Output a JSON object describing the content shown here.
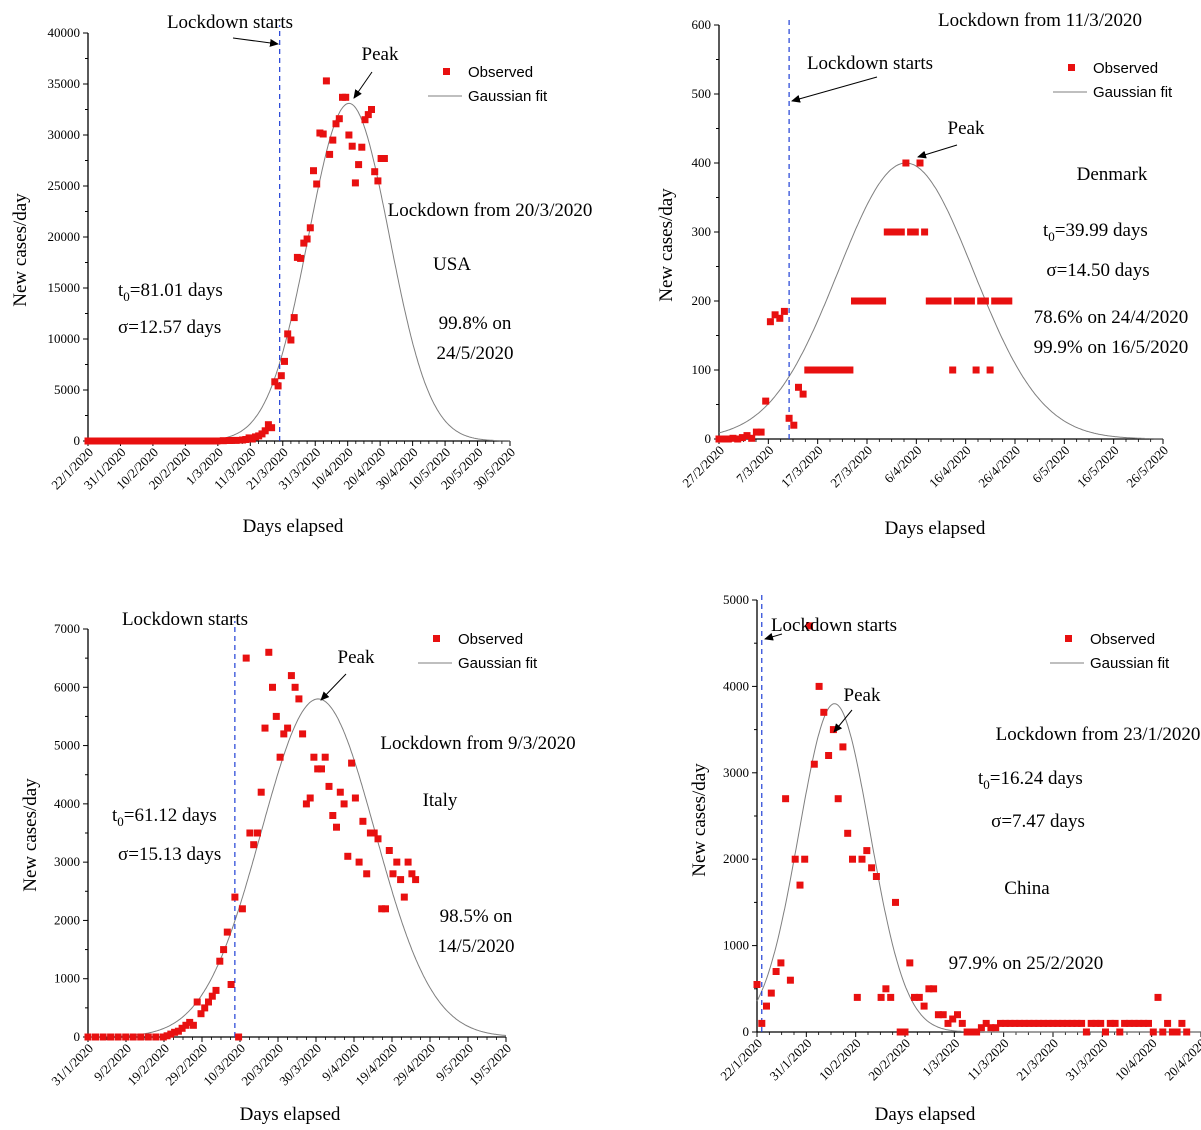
{
  "chart_data": [
    {
      "type": "scatter",
      "country": "USA",
      "xlabel": "Days elapsed",
      "ylabel": "New cases/day",
      "ylim": [
        0,
        40000
      ],
      "yticks": [
        "0",
        "5000",
        "10000",
        "15000",
        "20000",
        "25000",
        "30000",
        "35000",
        "40000"
      ],
      "xticks": [
        "22/1/2020",
        "31/1/2020",
        "10/2/2020",
        "20/2/2020",
        "1/3/2020",
        "11/3/2020",
        "21/3/2020",
        "31/3/2020",
        "10/4/2020",
        "20/4/2020",
        "30/4/2020",
        "10/5/2020",
        "20/5/2020",
        "30/5/2020"
      ],
      "x_day_range": [
        0,
        131
      ],
      "legend": [
        "Observed",
        "Gaussian fit"
      ],
      "legend_position": "top-right",
      "lockdown_label": "Lockdown starts",
      "lockdown_day": 59.5,
      "peak_label": "Peak",
      "annotations": [
        "Lockdown from 20/3/2020",
        "USA",
        "99.8% on",
        "24/5/2020"
      ],
      "t0_text": {
        "main": "t",
        "sub": "0",
        "rest": "=81.01 days"
      },
      "sigma_text": "σ=12.57 days",
      "fit": {
        "t0_day": 81.01,
        "sigma": 12.57,
        "amplitude": 33100
      },
      "observed": {
        "days": [
          0,
          2,
          4,
          6,
          8,
          10,
          12,
          14,
          16,
          18,
          20,
          22,
          24,
          26,
          28,
          30,
          32,
          34,
          36,
          38,
          40,
          42,
          44,
          46,
          48,
          49,
          50,
          51,
          52,
          53,
          54,
          55,
          56,
          57,
          58,
          59,
          60,
          61,
          62,
          63,
          64,
          65,
          66,
          67,
          68,
          69,
          70,
          71,
          72,
          73,
          74,
          75,
          76,
          77,
          78,
          79,
          80,
          81,
          82,
          83,
          84,
          85,
          86,
          87,
          88,
          89,
          90,
          91,
          92
        ],
        "values": [
          0,
          0,
          0,
          0,
          0,
          0,
          0,
          0,
          0,
          0,
          0,
          0,
          0,
          0,
          0,
          0,
          0,
          0,
          0,
          0,
          0,
          30,
          50,
          60,
          100,
          150,
          300,
          200,
          400,
          500,
          700,
          1000,
          1600,
          1300,
          5800,
          5400,
          6400,
          7800,
          10500,
          9900,
          12100,
          18000,
          17900,
          19400,
          19800,
          20900,
          26500,
          25200,
          30200,
          30100,
          35300,
          28100,
          29500,
          31100,
          31600,
          33700,
          33700,
          30000,
          28900,
          25300,
          27100,
          28800,
          31500,
          32000,
          32500,
          26400,
          25500,
          27700,
          27700
        ]
      }
    },
    {
      "type": "scatter",
      "country": "Denmark",
      "xlabel": "Days elapsed",
      "ylabel": "New cases/day",
      "ylim": [
        0,
        600
      ],
      "yticks": [
        "0",
        "100",
        "200",
        "300",
        "400",
        "500",
        "600"
      ],
      "xticks": [
        "27/2/2020",
        "7/3/2020",
        "17/3/2020",
        "27/3/2020",
        "6/4/2020",
        "16/4/2020",
        "26/4/2020",
        "6/5/2020",
        "16/5/2020",
        "26/5/2020"
      ],
      "x_day_range": [
        0,
        95
      ],
      "legend": [
        "Observed",
        "Gaussian fit"
      ],
      "legend_position": "top-right",
      "lockdown_label": "Lockdown starts",
      "lockdown_day": 15,
      "peak_label": "Peak",
      "annotations": [
        "Lockdown from 11/3/2020",
        "Denmark",
        "σ=14.50 days",
        "78.6% on 24/4/2020",
        "99.9% on 16/5/2020"
      ],
      "t0_text": {
        "main": "t",
        "sub": "0",
        "rest": "=39.99 days"
      },
      "fit": {
        "t0_day": 39.99,
        "sigma": 14.5,
        "amplitude": 400
      },
      "observed": {
        "days": [
          0,
          1,
          2,
          3,
          4,
          5,
          6,
          7,
          8,
          9,
          10,
          11,
          12,
          13,
          14,
          15,
          16,
          17,
          18,
          19,
          20,
          21,
          22,
          23,
          24,
          25,
          26,
          27,
          28,
          29,
          30,
          31,
          32,
          33,
          34,
          35,
          36,
          37,
          38,
          39,
          40,
          41,
          42,
          43,
          44,
          45,
          46,
          47,
          48,
          49,
          50,
          51,
          52,
          53,
          54,
          55,
          56,
          57,
          58,
          59,
          60,
          61,
          62
        ],
        "values": [
          0,
          0,
          0,
          1,
          0,
          2,
          5,
          1,
          10,
          10,
          55,
          170,
          180,
          175,
          185,
          30,
          20,
          75,
          65,
          100,
          100,
          100,
          100,
          100,
          100,
          100,
          100,
          100,
          100,
          200,
          200,
          200,
          200,
          200,
          200,
          200,
          300,
          300,
          300,
          300,
          400,
          300,
          300,
          400,
          300,
          200,
          200,
          200,
          200,
          200,
          100,
          200,
          200,
          200,
          200,
          100,
          200,
          200,
          100,
          200,
          200,
          200,
          200
        ]
      }
    },
    {
      "type": "scatter",
      "country": "Italy",
      "xlabel": "Days elapsed",
      "ylabel": "New cases/day",
      "ylim": [
        0,
        7000
      ],
      "yticks": [
        "0",
        "1000",
        "2000",
        "3000",
        "4000",
        "5000",
        "6000",
        "7000"
      ],
      "xticks": [
        "31/1/2020",
        "9/2/2020",
        "19/2/2020",
        "29/2/2020",
        "10/3/2020",
        "20/3/2020",
        "30/3/2020",
        "9/4/2020",
        "19/4/2020",
        "29/4/2020",
        "9/5/2020",
        "19/5/2020"
      ],
      "x_day_range": [
        0,
        111
      ],
      "legend": [
        "Observed",
        "Gaussian fit"
      ],
      "legend_position": "top-right",
      "lockdown_label": "Lockdown starts",
      "lockdown_day": 39,
      "peak_label": "Peak",
      "annotations": [
        "Lockdown from 9/3/2020",
        "Italy",
        "98.5% on",
        "14/5/2020"
      ],
      "t0_text": {
        "main": "t",
        "sub": "0",
        "rest": "=61.12 days"
      },
      "sigma_text": "σ=15.13 days",
      "fit": {
        "t0_day": 61.12,
        "sigma": 15.13,
        "amplitude": 5800
      },
      "observed": {
        "days": [
          0,
          2,
          4,
          6,
          8,
          10,
          12,
          14,
          16,
          18,
          20,
          21,
          22,
          23,
          24,
          25,
          26,
          27,
          28,
          29,
          30,
          31,
          32,
          33,
          34,
          35,
          36,
          37,
          38,
          39,
          40,
          41,
          42,
          43,
          44,
          45,
          46,
          47,
          48,
          49,
          50,
          51,
          52,
          53,
          54,
          55,
          56,
          57,
          58,
          59,
          60,
          61,
          62,
          63,
          64,
          65,
          66,
          67,
          68,
          69,
          70,
          71,
          72,
          73,
          74,
          75,
          76,
          77,
          78,
          79,
          80,
          81,
          82,
          83,
          84,
          85,
          86,
          87
        ],
        "values": [
          0,
          0,
          0,
          0,
          0,
          0,
          0,
          0,
          0,
          0,
          0,
          20,
          50,
          80,
          100,
          150,
          200,
          250,
          200,
          600,
          400,
          500,
          600,
          700,
          800,
          1300,
          1500,
          1800,
          900,
          2400,
          0,
          2200,
          6500,
          3500,
          3300,
          3500,
          4200,
          5300,
          6600,
          6000,
          5500,
          4800,
          5200,
          5300,
          6200,
          6000,
          5800,
          5200,
          4000,
          4100,
          4800,
          4600,
          4600,
          4800,
          4300,
          3800,
          3600,
          4200,
          4000,
          3100,
          4700,
          4100,
          3000,
          3700,
          2800,
          3500,
          3500,
          3400,
          2200,
          2200,
          3200,
          2800,
          3000,
          2700,
          2400,
          3000,
          2800,
          2700
        ]
      }
    },
    {
      "type": "scatter",
      "country": "China",
      "xlabel": "Days elapsed",
      "ylabel": "New cases/day",
      "ylim": [
        0,
        5000
      ],
      "yticks": [
        "0",
        "1000",
        "2000",
        "3000",
        "4000",
        "5000"
      ],
      "xticks": [
        "22/1/2020",
        "31/1/2020",
        "10/2/2020",
        "20/2/2020",
        "1/3/2020",
        "11/3/2020",
        "21/3/2020",
        "31/3/2020",
        "10/4/2020",
        "20/4/2020"
      ],
      "x_day_range": [
        0,
        93
      ],
      "legend": [
        "Observed",
        "Gaussian fit"
      ],
      "legend_position": "top-right",
      "lockdown_label": "Lockdown starts",
      "lockdown_day": 1,
      "peak_label": "Peak",
      "annotations": [
        "Lockdown from 23/1/2020",
        "China",
        "σ=7.47 days",
        "97.9% on 25/2/2020"
      ],
      "t0_text": {
        "main": "t",
        "sub": "0",
        "rest": "=16.24 days"
      },
      "fit": {
        "t0_day": 16.24,
        "sigma": 7.47,
        "amplitude": 3800
      },
      "observed": {
        "days": [
          0,
          1,
          2,
          3,
          4,
          5,
          6,
          7,
          8,
          9,
          10,
          11,
          12,
          13,
          14,
          15,
          16,
          17,
          18,
          19,
          20,
          21,
          22,
          23,
          24,
          25,
          26,
          27,
          28,
          29,
          30,
          31,
          32,
          33,
          34,
          35,
          36,
          37,
          38,
          39,
          40,
          41,
          42,
          43,
          44,
          45,
          46,
          47,
          48,
          49,
          50,
          51,
          52,
          53,
          54,
          55,
          56,
          57,
          58,
          59,
          60,
          61,
          62,
          63,
          64,
          65,
          66,
          67,
          68,
          69,
          70,
          71,
          72,
          73,
          74,
          75,
          76,
          77,
          78,
          79,
          80,
          81,
          82,
          83,
          84,
          85,
          86,
          87,
          88,
          89,
          90
        ],
        "values": [
          550,
          100,
          300,
          450,
          700,
          800,
          2700,
          600,
          2000,
          1700,
          2000,
          4700,
          3100,
          4000,
          3700,
          3200,
          3500,
          2700,
          3300,
          2300,
          2000,
          400,
          2000,
          2100,
          1900,
          1800,
          400,
          500,
          400,
          1500,
          0,
          0,
          800,
          400,
          400,
          300,
          500,
          500,
          200,
          200,
          100,
          150,
          200,
          100,
          0,
          0,
          0,
          50,
          100,
          50,
          50,
          100,
          100,
          100,
          100,
          100,
          100,
          100,
          100,
          100,
          100,
          100,
          100,
          100,
          100,
          100,
          100,
          100,
          100,
          0,
          100,
          100,
          100,
          0,
          100,
          100,
          0,
          100,
          100,
          100,
          100,
          100,
          100,
          0,
          400,
          0,
          100,
          0,
          0,
          100,
          0
        ]
      }
    }
  ]
}
